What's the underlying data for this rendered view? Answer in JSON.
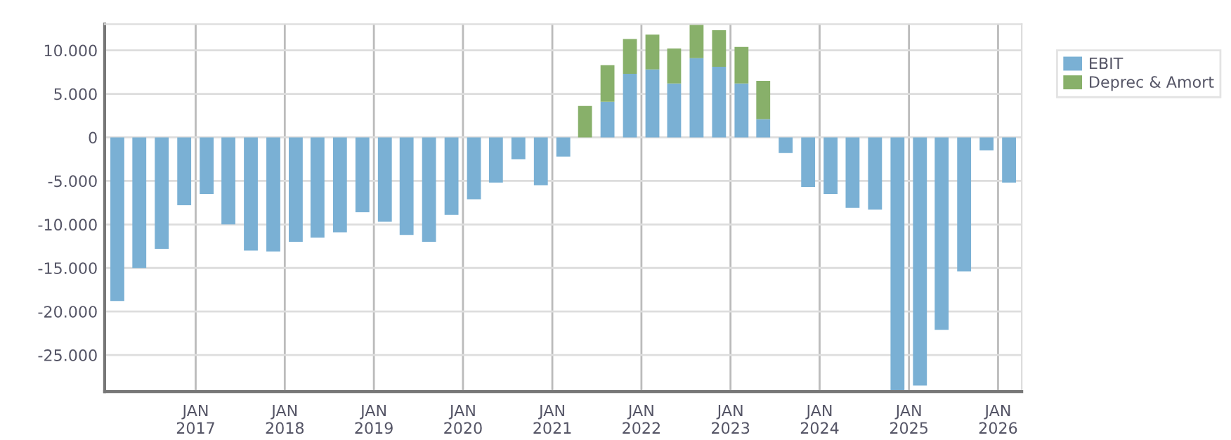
{
  "chart_data": {
    "type": "bar",
    "stacked": true,
    "x": [
      "2016-02-15",
      "2016-05-15",
      "2016-08-15",
      "2016-11-15",
      "2017-02-15",
      "2017-05-15",
      "2017-08-15",
      "2017-11-15",
      "2018-02-15",
      "2018-05-15",
      "2018-08-15",
      "2018-11-15",
      "2019-02-15",
      "2019-05-15",
      "2019-08-15",
      "2019-11-15",
      "2020-02-15",
      "2020-05-15",
      "2020-08-15",
      "2020-11-15",
      "2021-02-15",
      "2021-05-15",
      "2021-08-15",
      "2021-11-15",
      "2022-02-15",
      "2022-05-15",
      "2022-08-15",
      "2022-11-15",
      "2023-02-15",
      "2023-05-15",
      "2023-08-15",
      "2023-11-15",
      "2024-02-15",
      "2024-05-15",
      "2024-08-15",
      "2024-11-15",
      "2025-02-15",
      "2025-05-15",
      "2025-08-15",
      "2025-11-15",
      "2026-02-15"
    ],
    "series": [
      {
        "name": "EBIT",
        "color": "#7ab0d4",
        "values": [
          -18800,
          -15000,
          -12800,
          -7800,
          -6500,
          -10000,
          -13000,
          -13100,
          -12000,
          -11500,
          -10900,
          -8600,
          -9700,
          -11200,
          -12000,
          -8900,
          -7100,
          -5200,
          -2500,
          -5500,
          -2200,
          null,
          4100,
          7300,
          7800,
          6200,
          9100,
          8100,
          6200,
          2100,
          -1800,
          -5700,
          -6500,
          -8100,
          -8300,
          -29200,
          -28500,
          -22100,
          -15400,
          -1500,
          -5200
        ]
      },
      {
        "name": "Deprec & Amort",
        "color": "#88b06a",
        "values": [
          0,
          0,
          0,
          0,
          0,
          0,
          0,
          0,
          0,
          0,
          0,
          0,
          0,
          0,
          0,
          0,
          0,
          0,
          0,
          0,
          0,
          3600,
          4200,
          4000,
          4000,
          4000,
          3900,
          4200,
          4200,
          4400,
          0,
          0,
          0,
          0,
          0,
          0,
          0,
          0,
          0,
          0,
          0
        ]
      }
    ],
    "xlim": [
      "2015-12-25",
      "2026-04-08"
    ],
    "xticks": [
      {
        "value": "2017-01-01",
        "label": "JAN\n2017"
      },
      {
        "value": "2018-01-01",
        "label": "JAN\n2018"
      },
      {
        "value": "2019-01-01",
        "label": "JAN\n2019"
      },
      {
        "value": "2020-01-01",
        "label": "JAN\n2020"
      },
      {
        "value": "2021-01-01",
        "label": "JAN\n2021"
      },
      {
        "value": "2022-01-01",
        "label": "JAN\n2022"
      },
      {
        "value": "2023-01-01",
        "label": "JAN\n2023"
      },
      {
        "value": "2024-01-01",
        "label": "JAN\n2024"
      },
      {
        "value": "2025-01-01",
        "label": "JAN\n2025"
      },
      {
        "value": "2026-01-01",
        "label": "JAN\n2026"
      }
    ],
    "ylim": [
      -29200,
      13000
    ],
    "yticks": [
      {
        "value": 10000,
        "label": "10.000"
      },
      {
        "value": 5000,
        "label": "5.000"
      },
      0,
      {
        "value": -5000,
        "label": "-5.000"
      },
      {
        "value": -10000,
        "label": "-10.000"
      },
      {
        "value": -15000,
        "label": "-15.000"
      },
      {
        "value": -20000,
        "label": "-20.000"
      },
      {
        "value": -25000,
        "label": "-25.000"
      }
    ],
    "grid": true,
    "legend": "top right"
  }
}
